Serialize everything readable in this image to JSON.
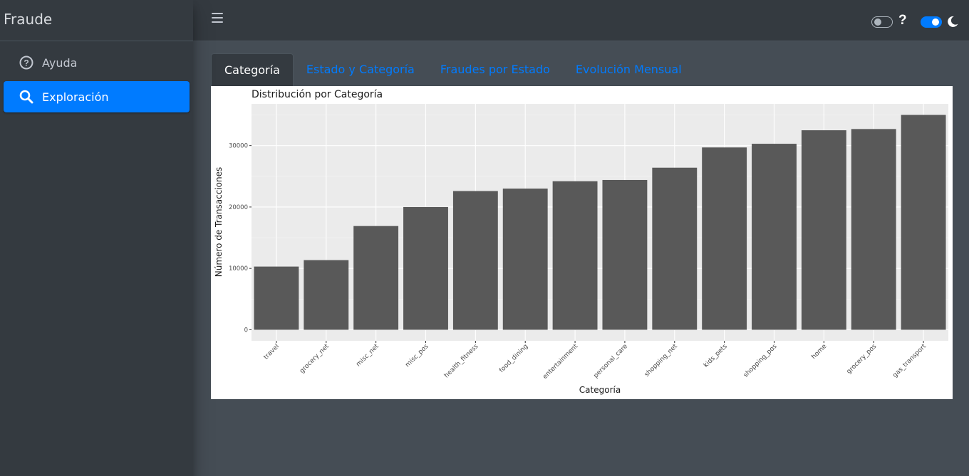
{
  "app": {
    "title": "Fraude"
  },
  "sidebar": {
    "items": [
      {
        "label": "Ayuda",
        "icon": "help-circle-icon",
        "active": false
      },
      {
        "label": "Exploración",
        "icon": "search-icon",
        "active": true
      }
    ]
  },
  "header": {
    "help_label": "?"
  },
  "tabs": [
    {
      "label": "Categoría",
      "active": true
    },
    {
      "label": "Estado y Categoría",
      "active": false
    },
    {
      "label": "Fraudes por Estado",
      "active": false
    },
    {
      "label": "Evolución Mensual",
      "active": false
    }
  ],
  "colors": {
    "accent": "#007bff",
    "sidebar_bg": "#343a40",
    "content_bg": "#454d55",
    "bar_fill": "#595959",
    "panel_bg": "#ebebeb"
  },
  "chart_data": {
    "type": "bar",
    "title": "Distribución por Categoría",
    "xlabel": "Categoría",
    "ylabel": "Número de Transacciones",
    "categories": [
      "travel",
      "grocery_net",
      "misc_net",
      "misc_pos",
      "health_fitness",
      "food_dining",
      "entertainment",
      "personal_care",
      "shopping_net",
      "kids_pets",
      "shopping_pos",
      "home",
      "grocery_pos",
      "gas_transport"
    ],
    "values": [
      10300,
      11350,
      16900,
      20000,
      22600,
      23000,
      24200,
      24400,
      26400,
      29700,
      30300,
      32500,
      32700,
      35000
    ],
    "yticks": [
      0,
      10000,
      20000,
      30000
    ],
    "ytick_labels": [
      "0",
      "10000",
      "20000",
      "30000"
    ],
    "ylim": [
      0,
      36750
    ],
    "grid": true,
    "legend": "none"
  }
}
